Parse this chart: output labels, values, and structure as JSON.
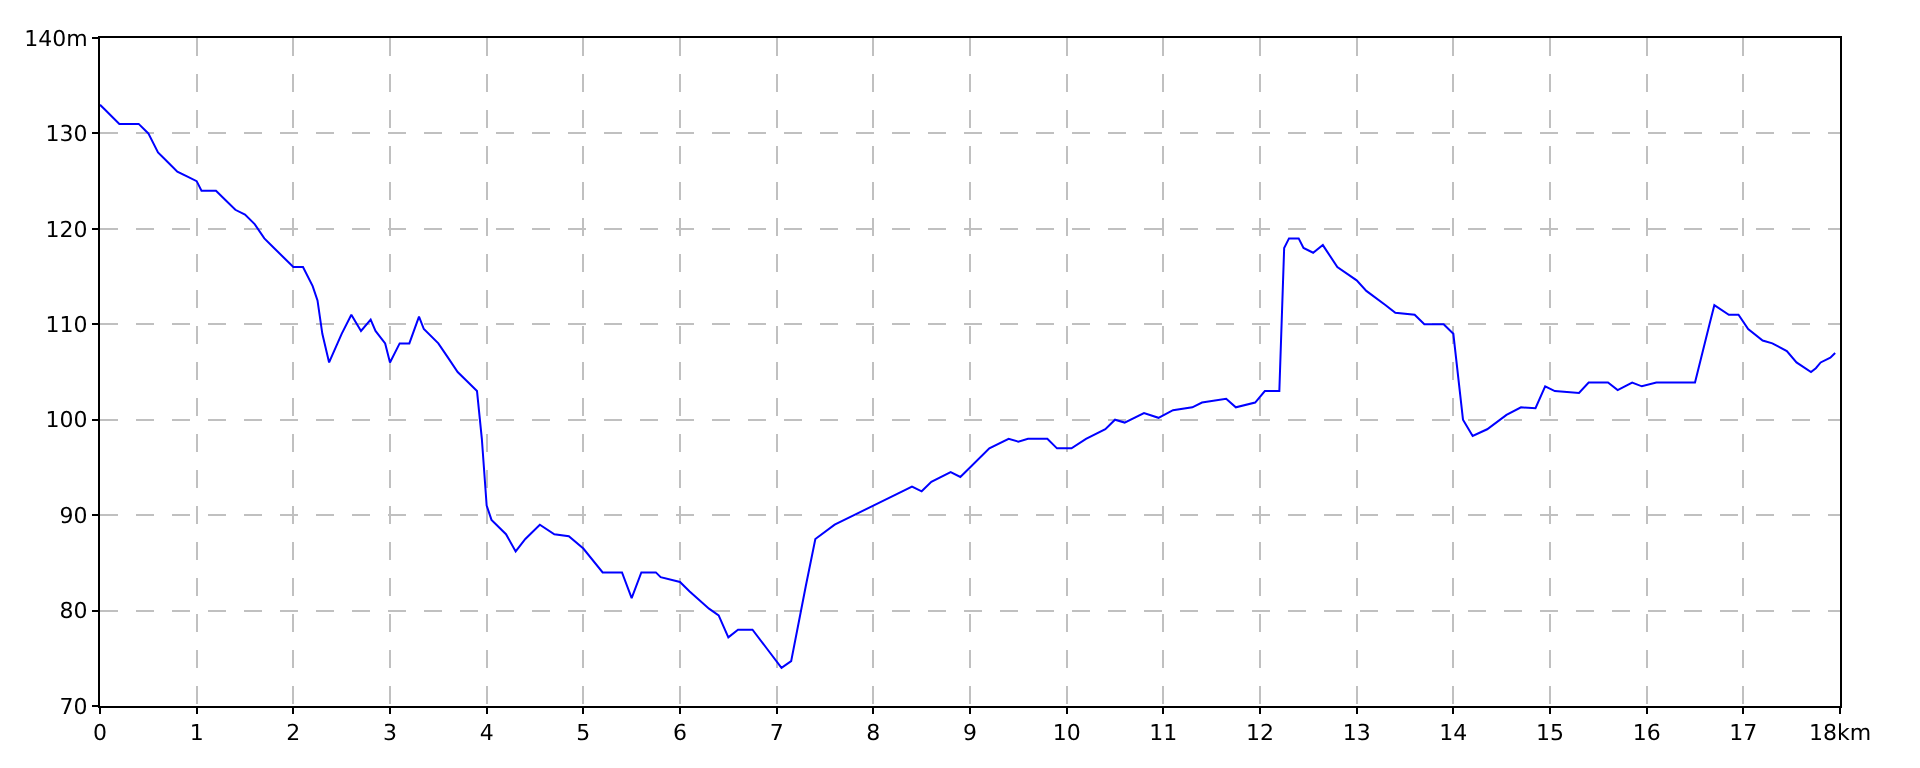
{
  "chart_data": {
    "type": "line",
    "x": [
      0,
      0.05,
      0.2,
      0.4,
      0.5,
      0.6,
      0.7,
      0.8,
      0.9,
      1.0,
      1.05,
      1.2,
      1.3,
      1.4,
      1.5,
      1.6,
      1.7,
      1.8,
      1.9,
      2.0,
      2.1,
      2.2,
      2.25,
      2.3,
      2.37,
      2.5,
      2.6,
      2.7,
      2.8,
      2.85,
      2.95,
      3.0,
      3.1,
      3.2,
      3.3,
      3.35,
      3.5,
      3.6,
      3.7,
      3.8,
      3.9,
      3.95,
      4.0,
      4.05,
      4.2,
      4.3,
      4.4,
      4.55,
      4.7,
      4.85,
      5.0,
      5.2,
      5.4,
      5.5,
      5.6,
      5.75,
      5.8,
      6.0,
      6.1,
      6.3,
      6.4,
      6.5,
      6.6,
      6.75,
      6.9,
      7.05,
      7.15,
      7.3,
      7.4,
      7.6,
      7.8,
      8.0,
      8.2,
      8.4,
      8.5,
      8.6,
      8.8,
      8.9,
      9.0,
      9.2,
      9.4,
      9.5,
      9.6,
      9.8,
      9.9,
      10.05,
      10.2,
      10.4,
      10.5,
      10.6,
      10.8,
      10.95,
      11.1,
      11.3,
      11.4,
      11.65,
      11.75,
      11.95,
      12.05,
      12.2,
      12.25,
      12.3,
      12.4,
      12.45,
      12.55,
      12.65,
      12.8,
      13.0,
      13.1,
      13.3,
      13.4,
      13.6,
      13.7,
      13.9,
      14.0,
      14.1,
      14.2,
      14.35,
      14.55,
      14.7,
      14.85,
      14.95,
      15.05,
      15.3,
      15.4,
      15.6,
      15.7,
      15.85,
      15.95,
      16.1,
      16.5,
      16.65,
      16.7,
      16.85,
      16.95,
      17.05,
      17.2,
      17.3,
      17.45,
      17.55,
      17.7,
      17.75,
      17.8,
      17.9,
      17.95
    ],
    "series": [
      {
        "color": "#0000ff",
        "values": [
          133,
          132.5,
          131,
          131,
          130,
          128,
          127,
          126,
          125.5,
          125,
          124,
          124,
          123,
          122,
          121.5,
          120.5,
          119,
          118,
          117,
          116,
          116,
          114,
          112.5,
          109,
          106,
          109,
          111,
          109.3,
          110.5,
          109.3,
          108,
          106,
          108,
          108,
          110.8,
          109.5,
          108,
          106.5,
          105,
          104,
          103,
          98,
          91,
          89.5,
          88,
          86.2,
          87.5,
          89,
          88,
          87.8,
          86.5,
          84,
          84,
          81.3,
          84,
          84,
          83.5,
          83,
          82,
          80.2,
          79.5,
          77.2,
          78,
          78,
          76,
          74,
          74.7,
          82.5,
          87.5,
          89,
          90,
          91,
          92,
          93,
          92.5,
          93.5,
          94.5,
          94,
          95,
          97,
          98,
          97.7,
          98,
          98,
          97,
          97,
          98,
          99,
          100,
          99.7,
          100.7,
          100.2,
          101,
          101.3,
          101.8,
          102.2,
          101.3,
          101.8,
          103,
          103,
          118,
          119,
          119,
          118,
          117.5,
          118.3,
          116,
          114.6,
          113.5,
          112,
          111.2,
          111,
          110,
          110,
          109,
          100,
          98.3,
          99,
          100.5,
          101.3,
          101.2,
          103.5,
          103,
          102.8,
          103.9,
          103.9,
          103.1,
          103.9,
          103.5,
          103.9,
          103.9,
          110,
          112,
          111,
          111,
          109.5,
          108.3,
          108,
          107.2,
          106,
          105,
          105.4,
          106,
          106.5,
          107
        ]
      }
    ],
    "xlim": [
      0,
      18
    ],
    "xticks": [
      0,
      1,
      2,
      3,
      4,
      5,
      6,
      7,
      8,
      9,
      10,
      11,
      12,
      13,
      14,
      15,
      16,
      17,
      {
        "value": 18,
        "label": "18km"
      }
    ],
    "ylim": [
      70,
      140
    ],
    "yticks": [
      70,
      80,
      90,
      100,
      110,
      120,
      130,
      {
        "value": 140,
        "label": "140m"
      }
    ],
    "grid": true,
    "marker": "none",
    "line_style": "solid"
  }
}
